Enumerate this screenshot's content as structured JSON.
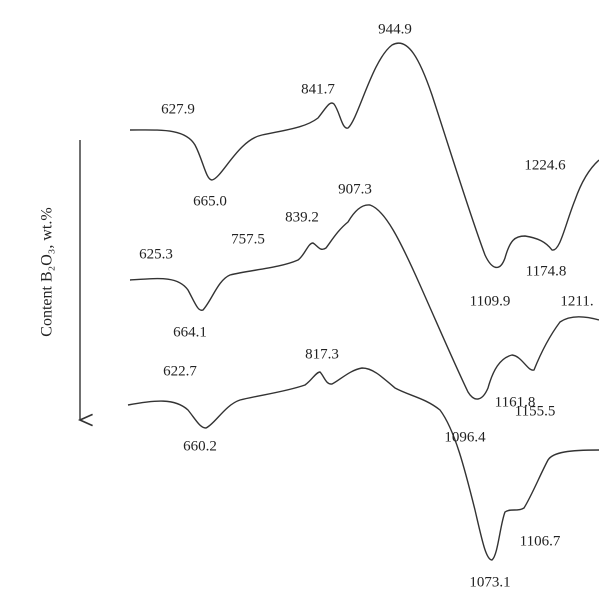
{
  "chart_data": {
    "type": "spectra",
    "axis_label": "Content B₂O₃, wt.%",
    "curves": [
      {
        "labels": [
          "944.9",
          "841.7",
          "627.9",
          "665.0",
          "1224.6",
          "1174.8",
          "1109.9"
        ]
      },
      {
        "labels": [
          "907.3",
          "839.2",
          "757.5",
          "625.3",
          "664.1",
          "1211.",
          "1161.8",
          "1096.4"
        ]
      },
      {
        "labels": [
          "1155.5",
          "817.3",
          "622.7",
          "660.2",
          "1106.7",
          "1073.1"
        ]
      }
    ]
  }
}
